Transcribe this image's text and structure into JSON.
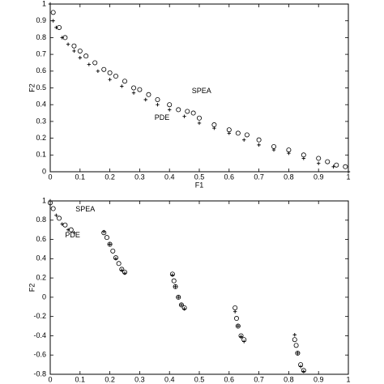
{
  "chart_data": [
    {
      "type": "scatter",
      "xlabel": "F1",
      "ylabel": "F2",
      "xlim": [
        0,
        1
      ],
      "ylim": [
        0,
        1
      ],
      "xticks": [
        0,
        0.1,
        0.2,
        0.3,
        0.4,
        0.5,
        0.6,
        0.7,
        0.8,
        0.9,
        1
      ],
      "yticks": [
        0,
        0.1,
        0.2,
        0.3,
        0.4,
        0.5,
        0.6,
        0.7,
        0.8,
        0.9,
        1
      ],
      "annotations": [
        "SPEA",
        "PDE"
      ],
      "series": [
        {
          "name": "SPEA",
          "color": "#000000",
          "marker": "circle",
          "x": [
            0.01,
            0.03,
            0.05,
            0.08,
            0.1,
            0.12,
            0.15,
            0.18,
            0.2,
            0.22,
            0.25,
            0.28,
            0.3,
            0.33,
            0.36,
            0.4,
            0.43,
            0.46,
            0.48,
            0.5,
            0.55,
            0.6,
            0.63,
            0.66,
            0.7,
            0.75,
            0.8,
            0.85,
            0.9,
            0.93,
            0.96,
            0.99
          ],
          "values": [
            0.95,
            0.86,
            0.8,
            0.75,
            0.72,
            0.69,
            0.65,
            0.61,
            0.59,
            0.57,
            0.54,
            0.5,
            0.49,
            0.46,
            0.43,
            0.4,
            0.37,
            0.36,
            0.35,
            0.32,
            0.28,
            0.25,
            0.23,
            0.22,
            0.19,
            0.15,
            0.13,
            0.1,
            0.08,
            0.06,
            0.04,
            0.03
          ]
        },
        {
          "name": "PDE",
          "color": "#000000",
          "marker": "plus",
          "x": [
            0,
            0.01,
            0.02,
            0.04,
            0.06,
            0.08,
            0.1,
            0.13,
            0.16,
            0.2,
            0.24,
            0.28,
            0.32,
            0.36,
            0.4,
            0.45,
            0.5,
            0.55,
            0.6,
            0.65,
            0.7,
            0.75,
            0.8,
            0.85,
            0.9,
            0.95,
            1
          ],
          "values": [
            1,
            0.9,
            0.86,
            0.8,
            0.76,
            0.72,
            0.68,
            0.64,
            0.6,
            0.55,
            0.51,
            0.47,
            0.43,
            0.4,
            0.37,
            0.33,
            0.29,
            0.26,
            0.23,
            0.19,
            0.16,
            0.13,
            0.11,
            0.08,
            0.05,
            0.03,
            0
          ]
        }
      ]
    },
    {
      "type": "scatter",
      "ylabel": "F2",
      "xlim": [
        0,
        1
      ],
      "ylim": [
        -0.8,
        1
      ],
      "xticks": [
        0,
        0.1,
        0.2,
        0.3,
        0.4,
        0.5,
        0.6,
        0.7,
        0.8,
        0.9,
        1
      ],
      "yticks": [
        -0.8,
        -0.6,
        -0.4,
        -0.2,
        0,
        0.2,
        0.4,
        0.6,
        0.8,
        1
      ],
      "annotations": [
        "SPEA",
        "PDE"
      ],
      "series": [
        {
          "name": "SPEA",
          "color": "#000000",
          "marker": "circle",
          "x": [
            0,
            0.01,
            0.03,
            0.05,
            0.07,
            0.18,
            0.19,
            0.2,
            0.21,
            0.22,
            0.23,
            0.24,
            0.25,
            0.41,
            0.415,
            0.42,
            0.43,
            0.44,
            0.45,
            0.62,
            0.625,
            0.63,
            0.64,
            0.65,
            0.82,
            0.825,
            0.83,
            0.84,
            0.85
          ],
          "values": [
            0.98,
            0.92,
            0.82,
            0.75,
            0.7,
            0.67,
            0.62,
            0.55,
            0.48,
            0.41,
            0.35,
            0.29,
            0.26,
            0.24,
            0.17,
            0.11,
            0.0,
            -0.08,
            -0.11,
            -0.11,
            -0.22,
            -0.3,
            -0.4,
            -0.44,
            -0.44,
            -0.5,
            -0.58,
            -0.7,
            -0.76
          ]
        },
        {
          "name": "PDE",
          "color": "#000000",
          "marker": "plus",
          "x": [
            0,
            0.02,
            0.04,
            0.06,
            0.08,
            0.18,
            0.2,
            0.22,
            0.24,
            0.25,
            0.41,
            0.42,
            0.43,
            0.44,
            0.45,
            0.62,
            0.63,
            0.64,
            0.65,
            0.82,
            0.83,
            0.84,
            0.85
          ],
          "values": [
            1,
            0.85,
            0.76,
            0.7,
            0.67,
            0.68,
            0.55,
            0.4,
            0.28,
            0.25,
            0.23,
            0.11,
            0.0,
            -0.08,
            -0.12,
            -0.15,
            -0.3,
            -0.41,
            -0.46,
            -0.39,
            -0.58,
            -0.72,
            -0.77
          ]
        }
      ]
    }
  ]
}
